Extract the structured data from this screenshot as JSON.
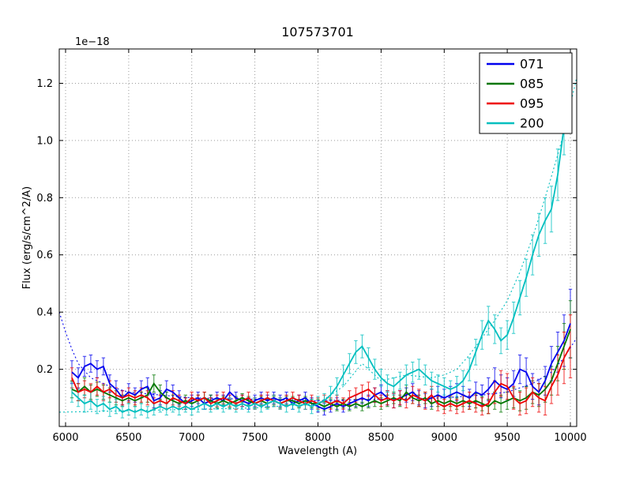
{
  "chart_data": {
    "type": "line",
    "title": "107573701",
    "xlabel": "Wavelength (A)",
    "ylabel": "Flux (erg/s/cm^2/A)",
    "offset_text": "1e−18",
    "xlim": [
      5950,
      10050
    ],
    "ylim": [
      0.0,
      1.32
    ],
    "xticks": [
      6000,
      6500,
      7000,
      7500,
      8000,
      8500,
      9000,
      9500,
      10000
    ],
    "yticks": [
      0.2,
      0.4,
      0.6,
      0.8,
      1.0,
      1.2
    ],
    "grid": true,
    "legend_position": "upper right",
    "x": [
      6050,
      6100,
      6150,
      6200,
      6250,
      6300,
      6350,
      6400,
      6450,
      6500,
      6550,
      6600,
      6650,
      6700,
      6750,
      6800,
      6850,
      6900,
      6950,
      7000,
      7050,
      7100,
      7150,
      7200,
      7250,
      7300,
      7350,
      7400,
      7450,
      7500,
      7550,
      7600,
      7650,
      7700,
      7750,
      7800,
      7850,
      7900,
      7950,
      8000,
      8050,
      8100,
      8150,
      8200,
      8250,
      8300,
      8350,
      8400,
      8450,
      8500,
      8550,
      8600,
      8650,
      8700,
      8750,
      8800,
      8850,
      8900,
      8950,
      9000,
      9050,
      9100,
      9150,
      9200,
      9250,
      9300,
      9350,
      9400,
      9450,
      9500,
      9550,
      9600,
      9650,
      9700,
      9750,
      9800,
      9850,
      9900,
      9950,
      10000
    ],
    "series": [
      {
        "name": "071",
        "color": "#0000ee",
        "values": [
          0.19,
          0.17,
          0.21,
          0.22,
          0.2,
          0.21,
          0.15,
          0.13,
          0.1,
          0.12,
          0.11,
          0.13,
          0.14,
          0.09,
          0.1,
          0.13,
          0.12,
          0.1,
          0.08,
          0.09,
          0.1,
          0.08,
          0.09,
          0.1,
          0.09,
          0.12,
          0.1,
          0.09,
          0.08,
          0.09,
          0.1,
          0.09,
          0.1,
          0.09,
          0.1,
          0.08,
          0.09,
          0.1,
          0.08,
          0.07,
          0.06,
          0.07,
          0.08,
          0.07,
          0.08,
          0.09,
          0.1,
          0.09,
          0.11,
          0.12,
          0.1,
          0.09,
          0.1,
          0.11,
          0.12,
          0.1,
          0.09,
          0.1,
          0.11,
          0.1,
          0.11,
          0.12,
          0.11,
          0.1,
          0.12,
          0.11,
          0.13,
          0.16,
          0.14,
          0.13,
          0.15,
          0.2,
          0.19,
          0.14,
          0.12,
          0.16,
          0.22,
          0.26,
          0.3,
          0.36
        ],
        "errors": [
          0.04,
          0.035,
          0.035,
          0.03,
          0.03,
          0.03,
          0.03,
          0.03,
          0.025,
          0.03,
          0.025,
          0.03,
          0.03,
          0.025,
          0.025,
          0.03,
          0.025,
          0.025,
          0.02,
          0.02,
          0.02,
          0.02,
          0.02,
          0.02,
          0.02,
          0.025,
          0.02,
          0.02,
          0.02,
          0.02,
          0.02,
          0.02,
          0.02,
          0.02,
          0.02,
          0.02,
          0.02,
          0.02,
          0.02,
          0.02,
          0.02,
          0.02,
          0.02,
          0.02,
          0.02,
          0.02,
          0.02,
          0.02,
          0.025,
          0.025,
          0.025,
          0.025,
          0.025,
          0.025,
          0.03,
          0.025,
          0.025,
          0.03,
          0.03,
          0.03,
          0.03,
          0.03,
          0.03,
          0.03,
          0.035,
          0.035,
          0.04,
          0.045,
          0.04,
          0.04,
          0.045,
          0.05,
          0.05,
          0.045,
          0.045,
          0.05,
          0.06,
          0.07,
          0.09,
          0.12
        ]
      },
      {
        "name": "085",
        "color": "#007700",
        "values": [
          0.13,
          0.12,
          0.14,
          0.12,
          0.13,
          0.12,
          0.11,
          0.1,
          0.09,
          0.1,
          0.09,
          0.1,
          0.11,
          0.15,
          0.12,
          0.1,
          0.09,
          0.08,
          0.09,
          0.08,
          0.09,
          0.1,
          0.09,
          0.08,
          0.09,
          0.08,
          0.09,
          0.1,
          0.09,
          0.08,
          0.09,
          0.08,
          0.09,
          0.08,
          0.09,
          0.09,
          0.08,
          0.09,
          0.08,
          0.08,
          0.07,
          0.08,
          0.07,
          0.08,
          0.07,
          0.08,
          0.07,
          0.08,
          0.09,
          0.08,
          0.09,
          0.1,
          0.09,
          0.12,
          0.1,
          0.09,
          0.1,
          0.08,
          0.09,
          0.08,
          0.09,
          0.08,
          0.09,
          0.08,
          0.09,
          0.08,
          0.07,
          0.09,
          0.08,
          0.09,
          0.1,
          0.09,
          0.1,
          0.12,
          0.11,
          0.13,
          0.16,
          0.22,
          0.28,
          0.34
        ],
        "errors": [
          0.03,
          0.03,
          0.03,
          0.025,
          0.025,
          0.025,
          0.025,
          0.025,
          0.02,
          0.02,
          0.02,
          0.02,
          0.025,
          0.03,
          0.025,
          0.02,
          0.02,
          0.02,
          0.02,
          0.02,
          0.02,
          0.02,
          0.02,
          0.015,
          0.015,
          0.015,
          0.015,
          0.015,
          0.015,
          0.015,
          0.015,
          0.015,
          0.015,
          0.015,
          0.015,
          0.015,
          0.015,
          0.015,
          0.015,
          0.015,
          0.015,
          0.015,
          0.015,
          0.015,
          0.015,
          0.015,
          0.015,
          0.015,
          0.02,
          0.02,
          0.02,
          0.02,
          0.02,
          0.025,
          0.02,
          0.02,
          0.02,
          0.02,
          0.02,
          0.02,
          0.02,
          0.02,
          0.02,
          0.02,
          0.025,
          0.025,
          0.025,
          0.03,
          0.03,
          0.03,
          0.035,
          0.035,
          0.04,
          0.04,
          0.04,
          0.045,
          0.05,
          0.06,
          0.08,
          0.1
        ]
      },
      {
        "name": "095",
        "color": "#ee0000",
        "values": [
          0.17,
          0.12,
          0.13,
          0.12,
          0.14,
          0.12,
          0.13,
          0.11,
          0.1,
          0.11,
          0.1,
          0.11,
          0.1,
          0.08,
          0.09,
          0.08,
          0.1,
          0.09,
          0.08,
          0.1,
          0.09,
          0.1,
          0.08,
          0.09,
          0.1,
          0.09,
          0.08,
          0.09,
          0.1,
          0.08,
          0.09,
          0.1,
          0.09,
          0.08,
          0.09,
          0.1,
          0.09,
          0.08,
          0.09,
          0.08,
          0.09,
          0.08,
          0.09,
          0.08,
          0.1,
          0.11,
          0.12,
          0.13,
          0.11,
          0.09,
          0.1,
          0.09,
          0.1,
          0.09,
          0.11,
          0.1,
          0.09,
          0.11,
          0.08,
          0.07,
          0.08,
          0.07,
          0.08,
          0.09,
          0.08,
          0.07,
          0.08,
          0.12,
          0.15,
          0.14,
          0.1,
          0.08,
          0.09,
          0.12,
          0.1,
          0.09,
          0.14,
          0.18,
          0.24,
          0.28
        ],
        "errors": [
          0.035,
          0.03,
          0.03,
          0.03,
          0.03,
          0.03,
          0.03,
          0.025,
          0.025,
          0.025,
          0.025,
          0.025,
          0.025,
          0.02,
          0.02,
          0.02,
          0.025,
          0.02,
          0.02,
          0.02,
          0.02,
          0.02,
          0.02,
          0.02,
          0.02,
          0.02,
          0.02,
          0.02,
          0.02,
          0.02,
          0.02,
          0.02,
          0.02,
          0.02,
          0.02,
          0.02,
          0.02,
          0.02,
          0.02,
          0.02,
          0.02,
          0.02,
          0.02,
          0.02,
          0.025,
          0.025,
          0.025,
          0.025,
          0.025,
          0.02,
          0.025,
          0.025,
          0.025,
          0.025,
          0.03,
          0.03,
          0.03,
          0.03,
          0.025,
          0.025,
          0.025,
          0.025,
          0.03,
          0.03,
          0.03,
          0.03,
          0.035,
          0.04,
          0.045,
          0.045,
          0.04,
          0.04,
          0.045,
          0.05,
          0.05,
          0.05,
          0.06,
          0.07,
          0.09,
          0.11
        ]
      },
      {
        "name": "200",
        "color": "#00bfbf",
        "values": [
          0.12,
          0.1,
          0.08,
          0.09,
          0.07,
          0.08,
          0.06,
          0.07,
          0.05,
          0.06,
          0.05,
          0.06,
          0.05,
          0.06,
          0.07,
          0.06,
          0.07,
          0.06,
          0.07,
          0.06,
          0.07,
          0.08,
          0.07,
          0.08,
          0.07,
          0.08,
          0.07,
          0.08,
          0.07,
          0.08,
          0.07,
          0.08,
          0.09,
          0.08,
          0.07,
          0.08,
          0.07,
          0.08,
          0.07,
          0.08,
          0.09,
          0.11,
          0.14,
          0.18,
          0.22,
          0.26,
          0.28,
          0.24,
          0.2,
          0.17,
          0.15,
          0.14,
          0.16,
          0.18,
          0.19,
          0.2,
          0.18,
          0.16,
          0.15,
          0.14,
          0.13,
          0.14,
          0.16,
          0.2,
          0.26,
          0.32,
          0.37,
          0.34,
          0.3,
          0.32,
          0.38,
          0.45,
          0.52,
          0.6,
          0.67,
          0.72,
          0.76,
          0.88,
          1.05,
          1.3
        ],
        "errors": [
          0.035,
          0.03,
          0.03,
          0.03,
          0.025,
          0.025,
          0.025,
          0.025,
          0.02,
          0.02,
          0.02,
          0.02,
          0.02,
          0.02,
          0.02,
          0.02,
          0.02,
          0.02,
          0.02,
          0.02,
          0.02,
          0.02,
          0.02,
          0.02,
          0.02,
          0.02,
          0.02,
          0.02,
          0.02,
          0.02,
          0.02,
          0.02,
          0.02,
          0.02,
          0.02,
          0.02,
          0.02,
          0.02,
          0.025,
          0.025,
          0.025,
          0.03,
          0.03,
          0.035,
          0.035,
          0.04,
          0.04,
          0.035,
          0.035,
          0.03,
          0.03,
          0.03,
          0.03,
          0.035,
          0.035,
          0.035,
          0.035,
          0.03,
          0.03,
          0.03,
          0.03,
          0.035,
          0.035,
          0.04,
          0.045,
          0.05,
          0.05,
          0.05,
          0.045,
          0.05,
          0.055,
          0.06,
          0.065,
          0.07,
          0.075,
          0.08,
          0.08,
          0.09,
          0.1,
          0.12
        ]
      }
    ],
    "dotted_series": [
      {
        "name": "071-model",
        "color": "#0000ee",
        "x": [
          5950,
          6000,
          6050,
          6100,
          6200,
          6350,
          6500,
          7000,
          7500,
          8000,
          8500,
          9000,
          9300,
          9500,
          9700,
          9850,
          9950,
          10050
        ],
        "values": [
          0.4,
          0.33,
          0.27,
          0.22,
          0.17,
          0.14,
          0.12,
          0.1,
          0.095,
          0.09,
          0.095,
          0.1,
          0.11,
          0.12,
          0.15,
          0.19,
          0.24,
          0.31
        ]
      },
      {
        "name": "200-model",
        "color": "#00bfbf",
        "x": [
          5950,
          6500,
          7000,
          7500,
          8000,
          8200,
          8350,
          8500,
          8700,
          8900,
          9000,
          9100,
          9200,
          9300,
          9400,
          9500,
          9600,
          9700,
          9800,
          9900,
          9950,
          10050
        ],
        "values": [
          0.05,
          0.055,
          0.06,
          0.065,
          0.08,
          0.14,
          0.22,
          0.16,
          0.18,
          0.17,
          0.18,
          0.2,
          0.25,
          0.31,
          0.37,
          0.44,
          0.54,
          0.66,
          0.8,
          0.95,
          1.03,
          1.22
        ]
      }
    ]
  }
}
